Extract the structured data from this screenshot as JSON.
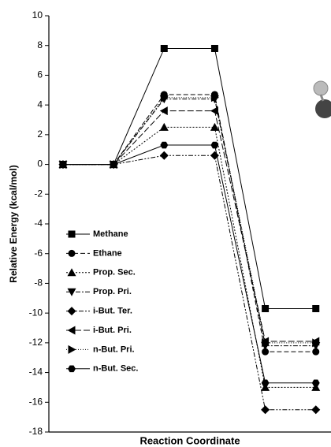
{
  "chart_data": {
    "type": "line",
    "y_label": "Relative Energy (kcal/mol)",
    "x_label": "Reaction Coordinate",
    "x": [
      1,
      2,
      3,
      4,
      5,
      6
    ],
    "xlim": [
      0.72,
      6.3
    ],
    "ylim": [
      -18,
      10
    ],
    "yticks": [
      -18,
      -16,
      -14,
      -12,
      -10,
      -8,
      -6,
      -4,
      -2,
      0,
      2,
      4,
      6,
      8,
      10
    ],
    "series": [
      {
        "name": "Methane",
        "color": "#000000",
        "marker": "square",
        "dash": "none",
        "values": [
          0,
          0,
          7.8,
          7.8,
          -9.7,
          -9.7
        ]
      },
      {
        "name": "Ethane",
        "color": "#000000",
        "marker": "circle",
        "dash": "6 3",
        "values": [
          0,
          0,
          4.7,
          4.7,
          -12.6,
          -12.6
        ]
      },
      {
        "name": "Prop. Sec.",
        "color": "#000000",
        "marker": "triangle-up",
        "dash": "2 2",
        "values": [
          0,
          0,
          2.5,
          2.5,
          -15.0,
          -15.0
        ]
      },
      {
        "name": "Prop. Pri.",
        "color": "#000000",
        "marker": "triangle-down",
        "dash": "6 2 2 2",
        "values": [
          0,
          0,
          4.4,
          4.4,
          -12.2,
          -12.2
        ]
      },
      {
        "name": "i-But. Ter.",
        "color": "#000000",
        "marker": "diamond",
        "dash": "6 2 2 2 2 2",
        "values": [
          0,
          0,
          0.6,
          0.6,
          -16.5,
          -16.5
        ]
      },
      {
        "name": "i-But. Pri.",
        "color": "#000000",
        "marker": "triangle-left",
        "dash": "8 3",
        "values": [
          0,
          0,
          3.6,
          3.6,
          -11.9,
          -11.9
        ]
      },
      {
        "name": "n-But. Pri.",
        "color": "#000000",
        "marker": "triangle-right",
        "dash": "1 2",
        "values": [
          0,
          0,
          4.5,
          4.5,
          -12.0,
          -12.0
        ]
      },
      {
        "name": "n-But. Sec.",
        "color": "#000000",
        "marker": "hexagon",
        "dash": "none",
        "values": [
          0,
          0,
          1.3,
          1.3,
          -14.7,
          -14.7
        ]
      }
    ]
  }
}
